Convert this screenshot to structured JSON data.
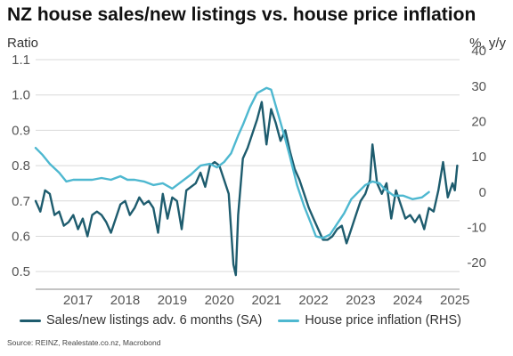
{
  "title": "NZ house sales/new listings vs. house price inflation",
  "source": "Source: REINZ, Realestate.co.nz, Macrobond",
  "colors": {
    "primary": "#1e5c6e",
    "secondary": "#4eb8d0",
    "grid": "#d9d9d9",
    "axis_text": "#555555"
  },
  "chart_data": {
    "type": "line",
    "title": "NZ house sales/new listings vs. house price inflation",
    "left_axis": {
      "label": "Ratio",
      "ylim": [
        0.45,
        1.1
      ],
      "ticks": [
        0.5,
        0.6,
        0.7,
        0.8,
        0.9,
        1.0,
        1.1
      ]
    },
    "right_axis": {
      "label": "%, y/y",
      "ylim": [
        -27.5,
        37.5
      ],
      "ticks": [
        -20,
        -10,
        0,
        10,
        20,
        30,
        40
      ]
    },
    "x_axis": {
      "xlim": [
        2016.6,
        2025.6
      ],
      "ticks": [
        "2017",
        "2018",
        "2019",
        "2020",
        "2021",
        "2022",
        "2023",
        "2024",
        "2025"
      ]
    },
    "grid": "horizontal",
    "legend_position": "bottom",
    "series": [
      {
        "name": "Sales/new listings adv. 6 months (SA)",
        "axis": "left",
        "color": "#1e5c6e",
        "points": [
          [
            2016.6,
            0.7
          ],
          [
            2016.7,
            0.67
          ],
          [
            2016.8,
            0.73
          ],
          [
            2016.9,
            0.72
          ],
          [
            2017.0,
            0.66
          ],
          [
            2017.1,
            0.67
          ],
          [
            2017.2,
            0.63
          ],
          [
            2017.3,
            0.64
          ],
          [
            2017.4,
            0.66
          ],
          [
            2017.5,
            0.62
          ],
          [
            2017.6,
            0.65
          ],
          [
            2017.7,
            0.6
          ],
          [
            2017.8,
            0.66
          ],
          [
            2017.9,
            0.67
          ],
          [
            2018.0,
            0.66
          ],
          [
            2018.1,
            0.64
          ],
          [
            2018.2,
            0.61
          ],
          [
            2018.3,
            0.65
          ],
          [
            2018.4,
            0.69
          ],
          [
            2018.5,
            0.7
          ],
          [
            2018.6,
            0.66
          ],
          [
            2018.7,
            0.68
          ],
          [
            2018.8,
            0.71
          ],
          [
            2018.9,
            0.69
          ],
          [
            2019.0,
            0.7
          ],
          [
            2019.1,
            0.68
          ],
          [
            2019.2,
            0.61
          ],
          [
            2019.3,
            0.72
          ],
          [
            2019.4,
            0.65
          ],
          [
            2019.5,
            0.71
          ],
          [
            2019.6,
            0.7
          ],
          [
            2019.7,
            0.62
          ],
          [
            2019.8,
            0.73
          ],
          [
            2019.9,
            0.74
          ],
          [
            2020.0,
            0.75
          ],
          [
            2020.1,
            0.78
          ],
          [
            2020.2,
            0.74
          ],
          [
            2020.3,
            0.8
          ],
          [
            2020.4,
            0.81
          ],
          [
            2020.5,
            0.8
          ],
          [
            2020.6,
            0.76
          ],
          [
            2020.7,
            0.72
          ],
          [
            2020.8,
            0.52
          ],
          [
            2020.85,
            0.49
          ],
          [
            2020.9,
            0.66
          ],
          [
            2021.0,
            0.82
          ],
          [
            2021.1,
            0.85
          ],
          [
            2021.2,
            0.89
          ],
          [
            2021.3,
            0.93
          ],
          [
            2021.4,
            0.98
          ],
          [
            2021.5,
            0.86
          ],
          [
            2021.6,
            0.96
          ],
          [
            2021.7,
            0.92
          ],
          [
            2021.8,
            0.87
          ],
          [
            2021.9,
            0.9
          ],
          [
            2022.0,
            0.84
          ],
          [
            2022.1,
            0.79
          ],
          [
            2022.2,
            0.76
          ],
          [
            2022.3,
            0.72
          ],
          [
            2022.4,
            0.68
          ],
          [
            2022.5,
            0.65
          ],
          [
            2022.6,
            0.62
          ],
          [
            2022.7,
            0.59
          ],
          [
            2022.8,
            0.59
          ],
          [
            2022.9,
            0.6
          ],
          [
            2023.0,
            0.62
          ],
          [
            2023.1,
            0.63
          ],
          [
            2023.2,
            0.58
          ],
          [
            2023.3,
            0.62
          ],
          [
            2023.4,
            0.66
          ],
          [
            2023.5,
            0.7
          ],
          [
            2023.6,
            0.72
          ],
          [
            2023.7,
            0.76
          ],
          [
            2023.75,
            0.86
          ],
          [
            2023.85,
            0.75
          ],
          [
            2023.95,
            0.72
          ],
          [
            2024.05,
            0.75
          ],
          [
            2024.15,
            0.65
          ],
          [
            2024.25,
            0.73
          ],
          [
            2024.35,
            0.69
          ],
          [
            2024.45,
            0.65
          ],
          [
            2024.55,
            0.66
          ],
          [
            2024.65,
            0.64
          ],
          [
            2024.75,
            0.66
          ],
          [
            2024.85,
            0.62
          ],
          [
            2024.95,
            0.68
          ],
          [
            2025.05,
            0.67
          ],
          [
            2025.15,
            0.73
          ],
          [
            2025.25,
            0.81
          ],
          [
            2025.35,
            0.71
          ],
          [
            2025.45,
            0.75
          ],
          [
            2025.5,
            0.73
          ],
          [
            2025.55,
            0.8
          ]
        ]
      },
      {
        "name": "House price inflation (RHS)",
        "axis": "right",
        "color": "#4eb8d0",
        "points": [
          [
            2016.6,
            12.5
          ],
          [
            2016.75,
            10.5
          ],
          [
            2016.9,
            8.0
          ],
          [
            2017.1,
            5.5
          ],
          [
            2017.25,
            3.0
          ],
          [
            2017.4,
            3.5
          ],
          [
            2017.6,
            3.5
          ],
          [
            2017.8,
            3.5
          ],
          [
            2018.0,
            4.0
          ],
          [
            2018.2,
            3.5
          ],
          [
            2018.4,
            4.5
          ],
          [
            2018.55,
            3.5
          ],
          [
            2018.7,
            3.5
          ],
          [
            2018.9,
            3.0
          ],
          [
            2019.1,
            2.0
          ],
          [
            2019.3,
            2.5
          ],
          [
            2019.5,
            1.0
          ],
          [
            2019.7,
            3.0
          ],
          [
            2019.9,
            5.0
          ],
          [
            2020.1,
            7.5
          ],
          [
            2020.3,
            8.0
          ],
          [
            2020.45,
            7.0
          ],
          [
            2020.6,
            8.5
          ],
          [
            2020.75,
            11.0
          ],
          [
            2020.9,
            16.0
          ],
          [
            2021.0,
            19.0
          ],
          [
            2021.15,
            24.0
          ],
          [
            2021.3,
            28.0
          ],
          [
            2021.5,
            29.5
          ],
          [
            2021.6,
            29.0
          ],
          [
            2021.75,
            22.0
          ],
          [
            2021.9,
            15.0
          ],
          [
            2022.0,
            10.0
          ],
          [
            2022.15,
            2.0
          ],
          [
            2022.3,
            -4.0
          ],
          [
            2022.45,
            -9.0
          ],
          [
            2022.55,
            -12.5
          ],
          [
            2022.7,
            -13.0
          ],
          [
            2022.85,
            -12.0
          ],
          [
            2023.0,
            -9.0
          ],
          [
            2023.15,
            -6.0
          ],
          [
            2023.3,
            -2.0
          ],
          [
            2023.45,
            0.0
          ],
          [
            2023.6,
            2.0
          ],
          [
            2023.75,
            3.0
          ],
          [
            2023.9,
            2.5
          ],
          [
            2024.0,
            1.0
          ],
          [
            2024.2,
            -1.0
          ],
          [
            2024.4,
            -1.0
          ],
          [
            2024.6,
            -2.0
          ],
          [
            2024.8,
            -1.5
          ],
          [
            2024.95,
            0.0
          ]
        ]
      }
    ]
  },
  "legend": [
    {
      "label": "Sales/new listings adv. 6 months (SA)",
      "color": "#1e5c6e"
    },
    {
      "label": "House price inflation (RHS)",
      "color": "#4eb8d0"
    }
  ]
}
